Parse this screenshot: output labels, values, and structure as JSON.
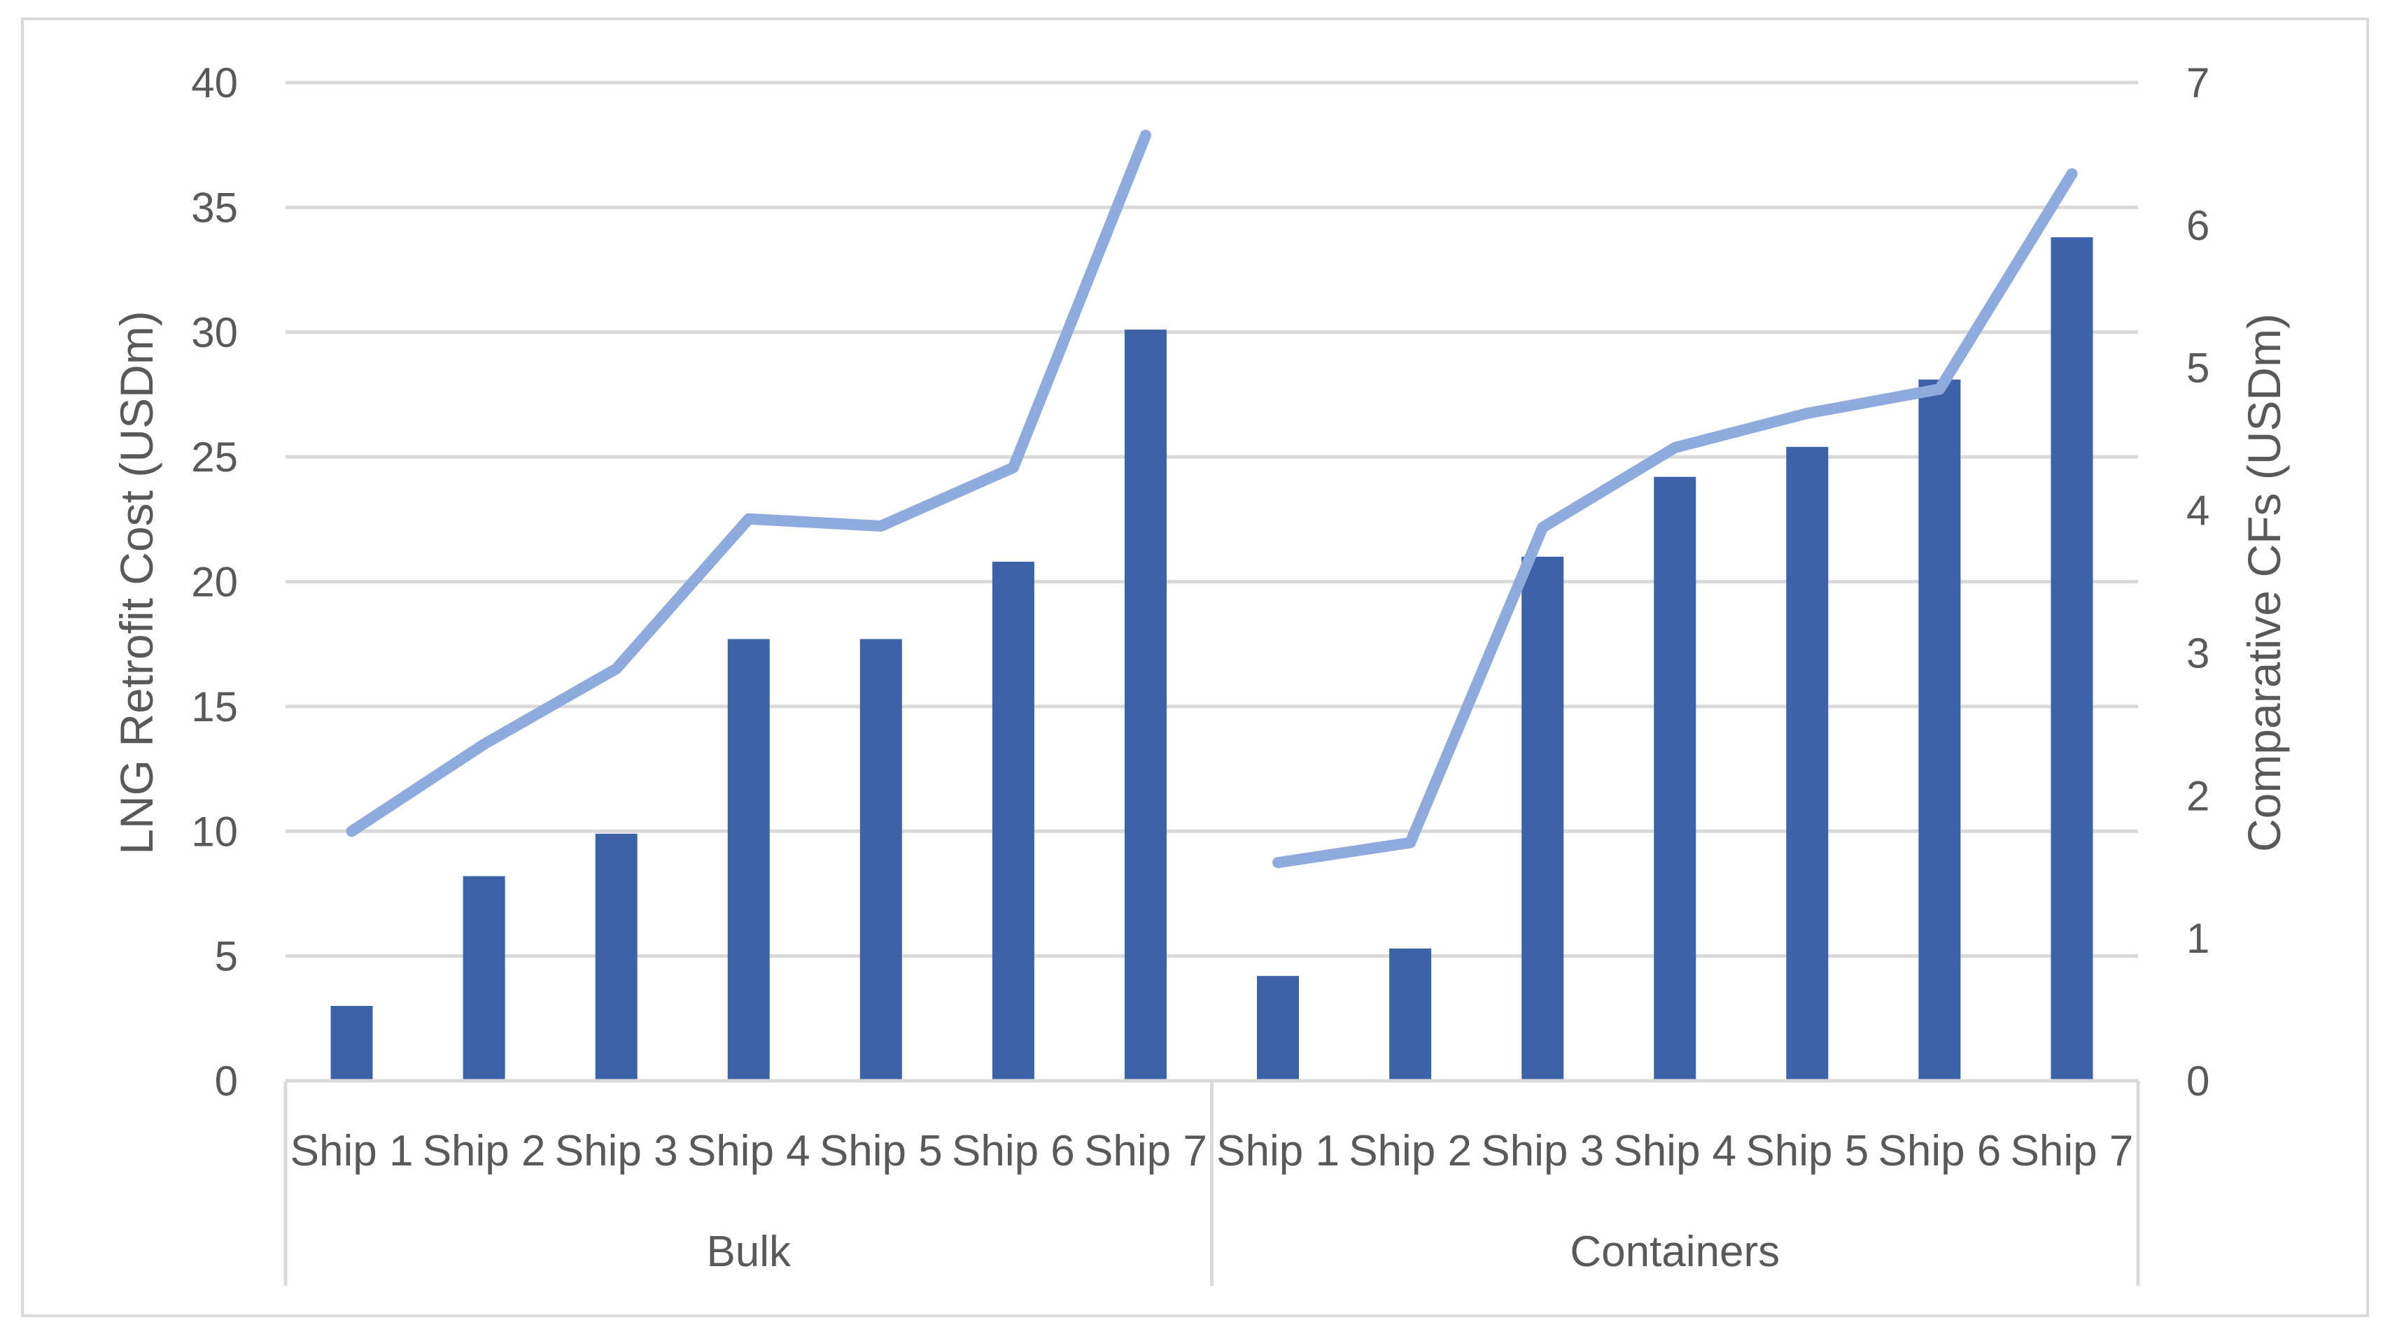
{
  "chart_data": {
    "type": "bar",
    "groups": [
      {
        "name": "Bulk",
        "categories": [
          "Ship 1",
          "Ship 2",
          "Ship 3",
          "Ship 4",
          "Ship 5",
          "Ship 6",
          "Ship 7"
        ]
      },
      {
        "name": "Containers",
        "categories": [
          "Ship 1",
          "Ship 2",
          "Ship 3",
          "Ship 4",
          "Ship 5",
          "Ship 6",
          "Ship 7"
        ]
      }
    ],
    "series": [
      {
        "type": "bar",
        "axis": "left",
        "color": "#3c62aa",
        "values": [
          3.0,
          8.2,
          9.9,
          17.7,
          17.7,
          20.8,
          30.1,
          4.2,
          5.3,
          21.0,
          24.2,
          25.4,
          28.1,
          33.8
        ]
      },
      {
        "type": "line",
        "axis": "right",
        "color": "#8faadc",
        "values": [
          1.75,
          2.36,
          2.89,
          3.94,
          3.89,
          4.3,
          6.63,
          1.53,
          1.67,
          3.88,
          4.44,
          4.68,
          4.85,
          6.36
        ]
      }
    ],
    "ylabel": "LNG Retrofit Cost (USDm)",
    "y2label": "Comparative CFs (USDm)",
    "ylim": [
      0,
      40
    ],
    "y2lim": [
      0,
      7
    ],
    "yticks": [
      "0",
      "5",
      "10",
      "15",
      "20",
      "25",
      "30",
      "35",
      "40"
    ],
    "y2ticks": [
      "0",
      "1",
      "2",
      "3",
      "4",
      "5",
      "6",
      "7"
    ],
    "grid": true,
    "legend": "none"
  }
}
